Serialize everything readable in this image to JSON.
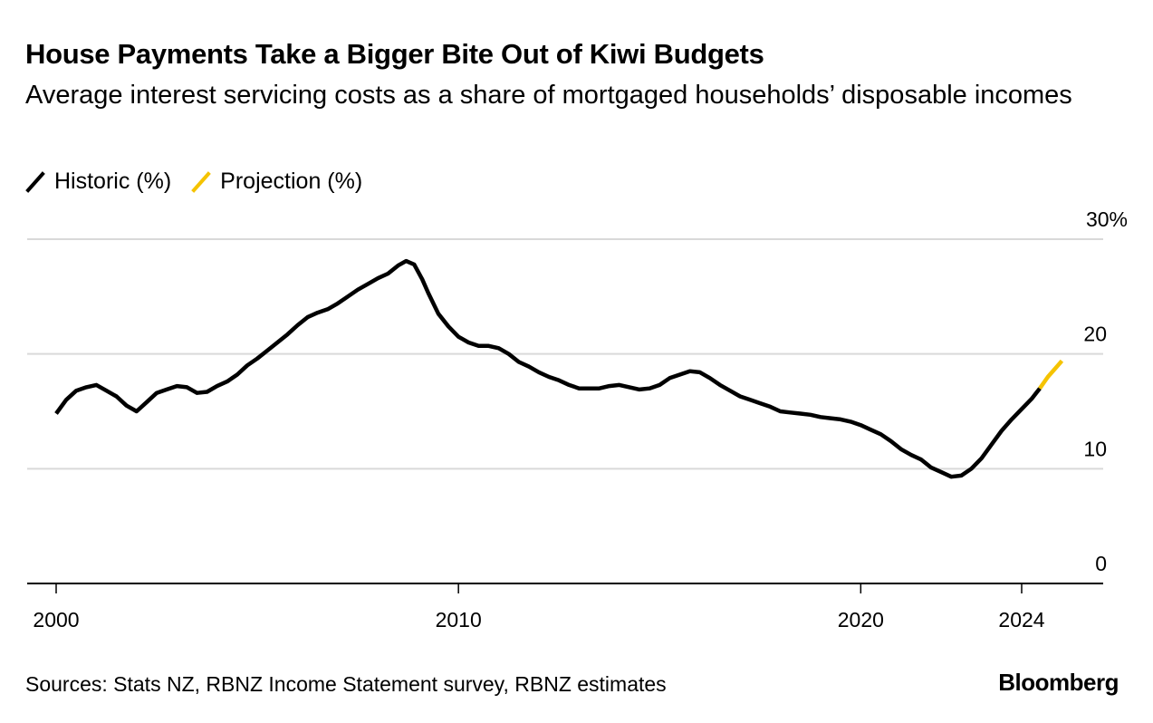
{
  "header": {
    "title": "House Payments Take a Bigger Bite Out of Kiwi Budgets",
    "subtitle": "Average interest servicing costs as a share of mortgaged households’ disposable incomes"
  },
  "legend": {
    "items": [
      {
        "label": "Historic (%)",
        "color": "#000000"
      },
      {
        "label": "Projection (%)",
        "color": "#f5c300"
      }
    ]
  },
  "footer": {
    "source": "Sources: Stats NZ, RBNZ Income Statement survey, RBNZ estimates",
    "brand": "Bloomberg"
  },
  "chart_data": {
    "type": "line",
    "title": "House Payments Take a Bigger Bite Out of Kiwi Budgets",
    "xlabel": "",
    "ylabel": "",
    "xlim": [
      1999.25,
      2026.15
    ],
    "ylim": [
      0,
      30
    ],
    "x_ticks": [
      2000,
      2010,
      2020,
      2024
    ],
    "x_tick_labels": [
      "2000",
      "2010",
      "2020",
      "2024"
    ],
    "y_ticks": [
      0,
      10,
      20,
      30
    ],
    "y_tick_labels": [
      "0",
      "10",
      "20",
      "30%"
    ],
    "grid": true,
    "legend_position": "top-left",
    "series": [
      {
        "name": "Historic (%)",
        "color": "#000000",
        "points": [
          [
            2000.0,
            14.8
          ],
          [
            2000.25,
            16.0
          ],
          [
            2000.5,
            16.8
          ],
          [
            2000.75,
            17.1
          ],
          [
            2001.0,
            17.3
          ],
          [
            2001.25,
            16.8
          ],
          [
            2001.5,
            16.3
          ],
          [
            2001.75,
            15.5
          ],
          [
            2002.0,
            15.0
          ],
          [
            2002.25,
            15.8
          ],
          [
            2002.5,
            16.6
          ],
          [
            2002.75,
            16.9
          ],
          [
            2003.0,
            17.2
          ],
          [
            2003.25,
            17.1
          ],
          [
            2003.5,
            16.6
          ],
          [
            2003.75,
            16.7
          ],
          [
            2004.0,
            17.2
          ],
          [
            2004.25,
            17.6
          ],
          [
            2004.5,
            18.2
          ],
          [
            2004.75,
            19.0
          ],
          [
            2005.0,
            19.6
          ],
          [
            2005.25,
            20.3
          ],
          [
            2005.5,
            21.0
          ],
          [
            2005.75,
            21.7
          ],
          [
            2006.0,
            22.5
          ],
          [
            2006.25,
            23.2
          ],
          [
            2006.5,
            23.6
          ],
          [
            2006.75,
            23.9
          ],
          [
            2007.0,
            24.4
          ],
          [
            2007.25,
            25.0
          ],
          [
            2007.5,
            25.6
          ],
          [
            2007.75,
            26.1
          ],
          [
            2008.0,
            26.6
          ],
          [
            2008.25,
            27.0
          ],
          [
            2008.5,
            27.7
          ],
          [
            2008.7,
            28.1
          ],
          [
            2008.9,
            27.8
          ],
          [
            2009.1,
            26.5
          ],
          [
            2009.25,
            25.3
          ],
          [
            2009.5,
            23.5
          ],
          [
            2009.75,
            22.4
          ],
          [
            2010.0,
            21.5
          ],
          [
            2010.25,
            21.0
          ],
          [
            2010.5,
            20.7
          ],
          [
            2010.75,
            20.7
          ],
          [
            2011.0,
            20.5
          ],
          [
            2011.25,
            20.0
          ],
          [
            2011.5,
            19.3
          ],
          [
            2011.75,
            18.9
          ],
          [
            2012.0,
            18.4
          ],
          [
            2012.25,
            18.0
          ],
          [
            2012.5,
            17.7
          ],
          [
            2012.75,
            17.3
          ],
          [
            2013.0,
            17.0
          ],
          [
            2013.25,
            17.0
          ],
          [
            2013.5,
            17.0
          ],
          [
            2013.75,
            17.2
          ],
          [
            2014.0,
            17.3
          ],
          [
            2014.25,
            17.1
          ],
          [
            2014.5,
            16.9
          ],
          [
            2014.75,
            17.0
          ],
          [
            2015.0,
            17.3
          ],
          [
            2015.25,
            17.9
          ],
          [
            2015.5,
            18.2
          ],
          [
            2015.75,
            18.5
          ],
          [
            2016.0,
            18.4
          ],
          [
            2016.25,
            17.9
          ],
          [
            2016.5,
            17.3
          ],
          [
            2016.75,
            16.8
          ],
          [
            2017.0,
            16.3
          ],
          [
            2017.25,
            16.0
          ],
          [
            2017.5,
            15.7
          ],
          [
            2017.75,
            15.4
          ],
          [
            2018.0,
            15.0
          ],
          [
            2018.25,
            14.9
          ],
          [
            2018.5,
            14.8
          ],
          [
            2018.75,
            14.7
          ],
          [
            2019.0,
            14.5
          ],
          [
            2019.25,
            14.4
          ],
          [
            2019.5,
            14.3
          ],
          [
            2019.75,
            14.1
          ],
          [
            2020.0,
            13.8
          ],
          [
            2020.25,
            13.4
          ],
          [
            2020.5,
            13.0
          ],
          [
            2020.75,
            12.4
          ],
          [
            2021.0,
            11.7
          ],
          [
            2021.25,
            11.2
          ],
          [
            2021.5,
            10.8
          ],
          [
            2021.75,
            10.1
          ],
          [
            2022.0,
            9.7
          ],
          [
            2022.25,
            9.3
          ],
          [
            2022.5,
            9.4
          ],
          [
            2022.75,
            10.0
          ],
          [
            2023.0,
            10.9
          ],
          [
            2023.25,
            12.1
          ],
          [
            2023.5,
            13.3
          ],
          [
            2023.75,
            14.3
          ],
          [
            2024.0,
            15.2
          ],
          [
            2024.25,
            16.1
          ],
          [
            2024.45,
            17.0
          ]
        ]
      },
      {
        "name": "Projection (%)",
        "color": "#f5c300",
        "points": [
          [
            2024.45,
            17.0
          ],
          [
            2024.65,
            18.0
          ],
          [
            2024.85,
            18.8
          ],
          [
            2025.0,
            19.4
          ]
        ]
      }
    ]
  }
}
